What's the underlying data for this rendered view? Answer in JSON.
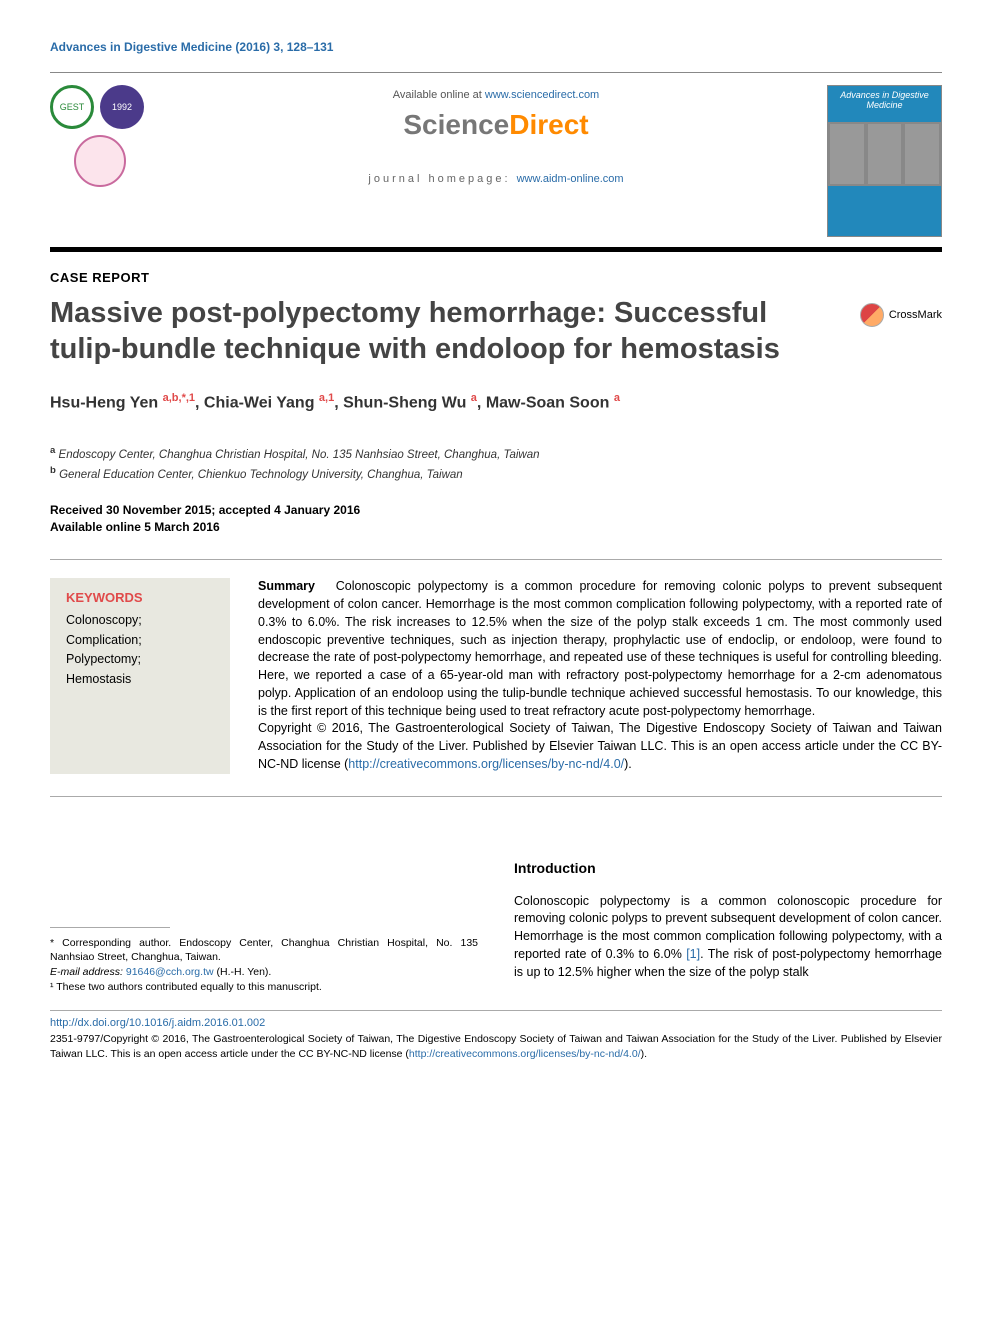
{
  "journal_ref": "Advances in Digestive Medicine (2016) 3, 128–131",
  "header": {
    "available_text": "Available online at ",
    "available_link": "www.sciencedirect.com",
    "brand_sci": "Science",
    "brand_direct": "Direct",
    "homepage_label": "journal homepage: ",
    "homepage_link": "www.aidm-online.com",
    "cover_title": "Advances in Digestive Medicine"
  },
  "article_type": "CASE REPORT",
  "title": "Massive post-polypectomy hemorrhage: Successful tulip-bundle technique with endoloop for hemostasis",
  "crossmark": "CrossMark",
  "authors_html": "Hsu-Heng Yen <sup>a,b,*,1</sup>, Chia-Wei Yang <sup>a,1</sup>, Shun-Sheng Wu <sup>a</sup>, Maw-Soan Soon <sup>a</sup>",
  "affiliations": {
    "a": "Endoscopy Center, Changhua Christian Hospital, No. 135 Nanhsiao Street, Changhua, Taiwan",
    "b": "General Education Center, Chienkuo Technology University, Changhua, Taiwan"
  },
  "dates": {
    "received": "Received 30 November 2015; accepted 4 January 2016",
    "online": "Available online 5 March 2016"
  },
  "keywords": {
    "heading": "KEYWORDS",
    "items": "Colonoscopy;\nComplication;\nPolypectomy;\nHemostasis"
  },
  "summary": {
    "lead": "Summary",
    "body": "Colonoscopic polypectomy is a common procedure for removing colonic polyps to prevent subsequent development of colon cancer. Hemorrhage is the most common complication following polypectomy, with a reported rate of 0.3% to 6.0%. The risk increases to 12.5% when the size of the polyp stalk exceeds 1 cm. The most commonly used endoscopic preventive techniques, such as injection therapy, prophylactic use of endoclip, or endoloop, were found to decrease the rate of post-polypectomy hemorrhage, and repeated use of these techniques is useful for controlling bleeding. Here, we reported a case of a 65-year-old man with refractory post-polypectomy hemorrhage for a 2-cm adenomatous polyp. Application of an endoloop using the tulip-bundle technique achieved successful hemostasis. To our knowledge, this is the first report of this technique being used to treat refractory acute post-polypectomy hemorrhage.",
    "copyright": "Copyright © 2016, The Gastroenterological Society of Taiwan, The Digestive Endoscopy Society of Taiwan and Taiwan Association for the Study of the Liver. Published by Elsevier Taiwan LLC. This is an open access article under the CC BY-NC-ND license (",
    "license_link": "http://creativecommons.org/licenses/by-nc-nd/4.0/",
    "copyright_end": ")."
  },
  "footnotes": {
    "corresponding": "* Corresponding author. Endoscopy Center, Changhua Christian Hospital, No. 135 Nanhsiao Street, Changhua, Taiwan.",
    "email_label": "E-mail address: ",
    "email": "91646@cch.org.tw",
    "email_paren": " (H.-H. Yen).",
    "equal": "¹ These two authors contributed equally to this manuscript."
  },
  "intro": {
    "heading": "Introduction",
    "p1_a": "Colonoscopic polypectomy is a common colonoscopic procedure for removing colonic polyps to prevent subsequent development of colon cancer. Hemorrhage is the most common complication following polypectomy, with a reported rate of 0.3% to 6.0% ",
    "cite1": "[1]",
    "p1_b": ". The risk of post-polypectomy hemorrhage is up to 12.5% higher when the size of the polyp stalk"
  },
  "doi": "http://dx.doi.org/10.1016/j.aidm.2016.01.002",
  "bottom_copyright": {
    "text": "2351-9797/Copyright © 2016, The Gastroenterological Society of Taiwan, The Digestive Endoscopy Society of Taiwan and Taiwan Association for the Study of the Liver. Published by Elsevier Taiwan LLC. This is an open access article under the CC BY-NC-ND license (",
    "link": "http://creativecommons.org/licenses/by-nc-nd/4.0/",
    "end": ")."
  },
  "colors": {
    "link": "#2a6ca8",
    "accent": "#e04a4a",
    "brand_orange": "#ff8a00",
    "brand_grey": "#777777",
    "kw_bg": "#e8e8e0"
  }
}
